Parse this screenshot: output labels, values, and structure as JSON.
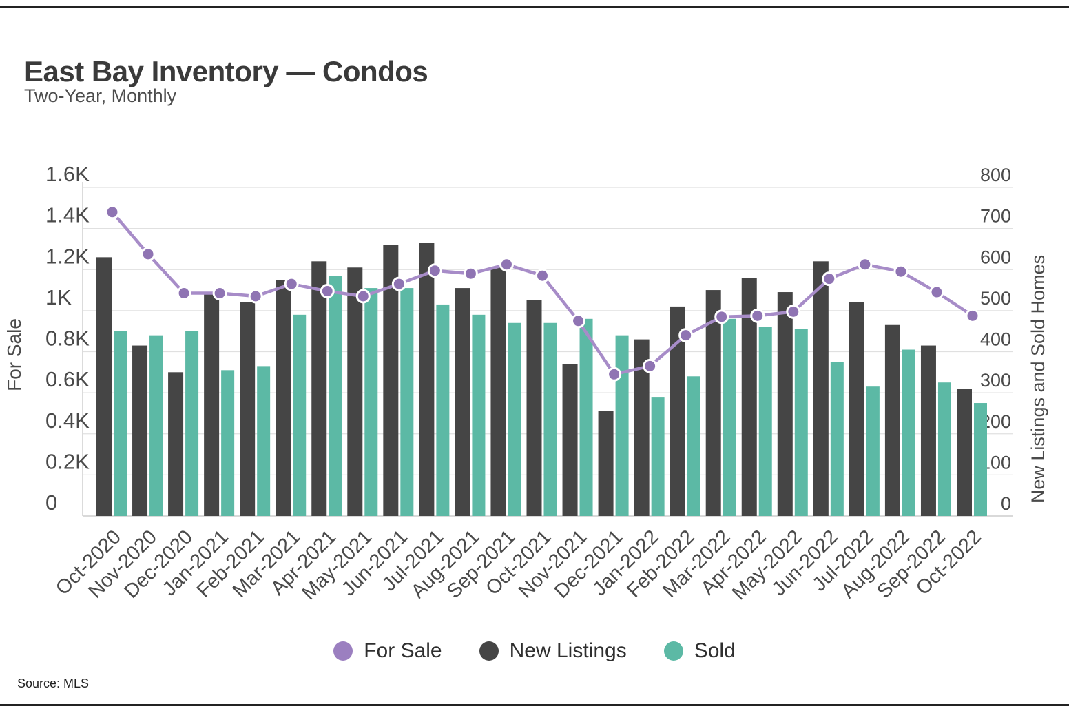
{
  "header": {
    "title": "East Bay Inventory — Condos",
    "subtitle": "Two-Year, Monthly"
  },
  "source_label": "Source: MLS",
  "colors": {
    "for_sale_line": "#a78cc8",
    "for_sale_point": "#8f74b3",
    "new_listings_bar": "#454545",
    "sold_bar": "#5cb9a5",
    "gridline": "#e0e0e0",
    "axis_line": "#cfcfcf",
    "tick_text": "#4a4a4a"
  },
  "legend": {
    "items": [
      {
        "label": "For Sale",
        "color": "#9b7fc0"
      },
      {
        "label": "New Listings",
        "color": "#454545"
      },
      {
        "label": "Sold",
        "color": "#5cb9a5"
      }
    ]
  },
  "chart_data": {
    "type": "bar+line combo",
    "title": "East Bay Inventory — Condos",
    "subtitle": "Two-Year, Monthly",
    "grid": true,
    "legend_position": "bottom",
    "categories": [
      "Oct-2020",
      "Nov-2020",
      "Dec-2020",
      "Jan-2021",
      "Feb-2021",
      "Mar-2021",
      "Apr-2021",
      "May-2021",
      "Jun-2021",
      "Jul-2021",
      "Aug-2021",
      "Sep-2021",
      "Oct-2021",
      "Nov-2021",
      "Dec-2021",
      "Jan-2022",
      "Feb-2022",
      "Mar-2022",
      "Apr-2022",
      "May-2022",
      "Jun-2022",
      "Jul-2022",
      "Aug-2022",
      "Sep-2022",
      "Oct-2022"
    ],
    "series": [
      {
        "name": "For Sale",
        "type": "line",
        "axis": "left",
        "color": "#a78cc8",
        "point_color": "#8f74b3",
        "values": [
          1480,
          1275,
          1085,
          1085,
          1070,
          1130,
          1095,
          1070,
          1130,
          1195,
          1180,
          1225,
          1170,
          950,
          690,
          730,
          880,
          970,
          975,
          995,
          1155,
          1225,
          1190,
          1090,
          975
        ]
      },
      {
        "name": "New Listings",
        "type": "bar",
        "axis": "right",
        "color": "#454545",
        "values": [
          630,
          415,
          350,
          540,
          520,
          575,
          620,
          605,
          660,
          665,
          555,
          605,
          525,
          370,
          255,
          430,
          510,
          550,
          580,
          545,
          620,
          520,
          465,
          415,
          310
        ]
      },
      {
        "name": "Sold",
        "type": "bar",
        "axis": "right",
        "color": "#5cb9a5",
        "values": [
          450,
          440,
          450,
          355,
          365,
          490,
          585,
          555,
          555,
          515,
          490,
          470,
          470,
          480,
          440,
          290,
          340,
          480,
          460,
          455,
          375,
          315,
          405,
          325,
          275
        ]
      }
    ],
    "left_axis": {
      "title": "For Sale",
      "min": 0,
      "max": 1600,
      "tick_values": [
        0,
        200,
        400,
        600,
        800,
        1000,
        1200,
        1400,
        1600
      ],
      "tick_labels": [
        "0",
        "0.2K",
        "0.4K",
        "0.6K",
        "0.8K",
        "1K",
        "1.2K",
        "1.4K",
        "1.6K"
      ]
    },
    "right_axis": {
      "title": "New Listings and Sold Homes",
      "min": 0,
      "max": 800,
      "tick_values": [
        0,
        100,
        200,
        300,
        400,
        500,
        600,
        700,
        800
      ],
      "tick_labels": [
        "0",
        "100",
        "200",
        "300",
        "400",
        "500",
        "600",
        "700",
        "800"
      ]
    }
  }
}
